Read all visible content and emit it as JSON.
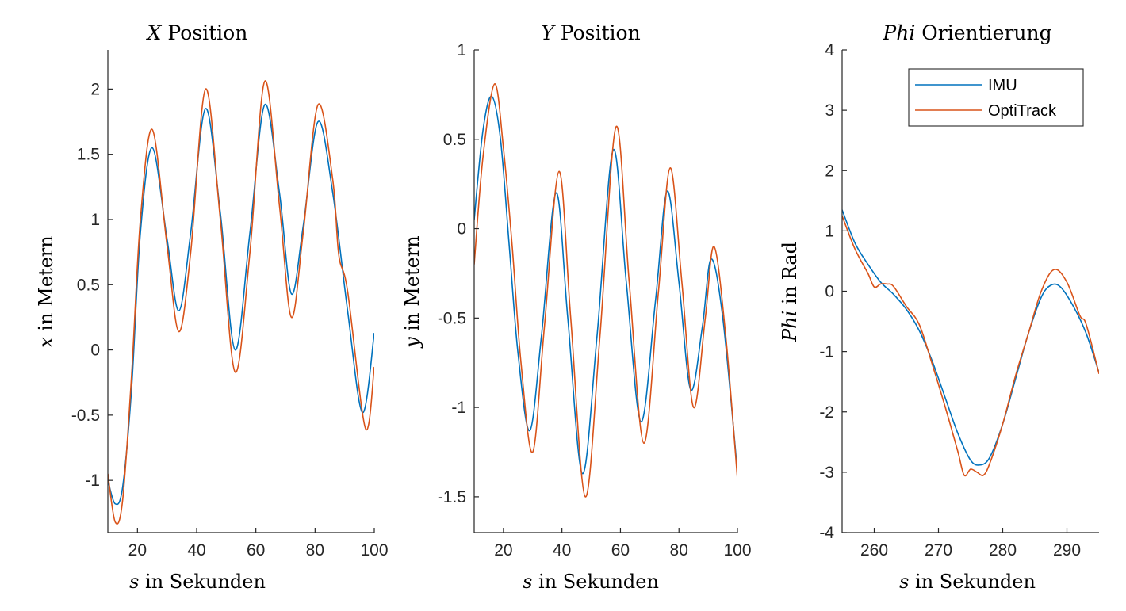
{
  "chart_data": [
    {
      "type": "line",
      "title": "X Position",
      "title_var": "X",
      "title_rest": " Position",
      "xlabel_var": "s",
      "xlabel_rest": " in Sekunden",
      "ylabel_var": "x",
      "ylabel_rest": " in Metern",
      "xlim": [
        10,
        100
      ],
      "ylim": [
        -1.4,
        2.3
      ],
      "xticks": [
        20,
        40,
        60,
        80,
        100
      ],
      "yticks": [
        -1,
        -0.5,
        0,
        0.5,
        1,
        1.5,
        2
      ],
      "legend": false,
      "series": [
        {
          "name": "IMU",
          "color": "#0072BD",
          "x": [
            10,
            12.5,
            15,
            18,
            21,
            25,
            30,
            34,
            38,
            43,
            48,
            53,
            58,
            63,
            68,
            72,
            76,
            81,
            86,
            91,
            96,
            100
          ],
          "y": [
            -1.0,
            -1.18,
            -1.05,
            -0.3,
            0.9,
            1.55,
            0.85,
            0.3,
            0.9,
            1.85,
            1.05,
            0.0,
            0.9,
            1.88,
            1.2,
            0.43,
            0.95,
            1.75,
            1.2,
            0.3,
            -0.48,
            0.13
          ]
        },
        {
          "name": "OptiTrack",
          "color": "#D95319",
          "x": [
            10,
            12.5,
            15,
            18,
            21,
            25,
            30,
            34,
            38,
            43,
            48,
            53,
            58,
            63,
            68,
            72,
            76,
            81,
            86,
            88,
            91,
            97,
            100
          ],
          "y": [
            -0.95,
            -1.32,
            -1.15,
            -0.2,
            1.0,
            1.69,
            0.8,
            0.14,
            0.75,
            2.0,
            1.0,
            -0.17,
            0.75,
            2.06,
            1.1,
            0.25,
            0.9,
            1.88,
            1.3,
            0.73,
            0.45,
            -0.6,
            -0.13
          ]
        }
      ]
    },
    {
      "type": "line",
      "title": "Y Position",
      "title_var": "Y",
      "title_rest": " Position",
      "xlabel_var": "s",
      "xlabel_rest": " in Sekunden",
      "ylabel_var": "y",
      "ylabel_rest": " in Metern",
      "xlim": [
        10,
        100
      ],
      "ylim": [
        -1.7,
        1.0
      ],
      "xticks": [
        20,
        40,
        60,
        80,
        100
      ],
      "yticks": [
        -1.5,
        -1,
        -0.5,
        0,
        0.5,
        1
      ],
      "legend": false,
      "series": [
        {
          "name": "IMU",
          "color": "#0072BD",
          "x": [
            10,
            13,
            16,
            19,
            22,
            25,
            29,
            33,
            38,
            42,
            47,
            52,
            57.5,
            62,
            67,
            72,
            76,
            80,
            84,
            88,
            91,
            95,
            100
          ],
          "y": [
            0.05,
            0.55,
            0.74,
            0.5,
            -0.1,
            -0.7,
            -1.13,
            -0.6,
            0.2,
            -0.5,
            -1.37,
            -0.6,
            0.44,
            -0.3,
            -1.08,
            -0.4,
            0.21,
            -0.3,
            -0.9,
            -0.55,
            -0.17,
            -0.5,
            -1.36
          ]
        },
        {
          "name": "OptiTrack",
          "color": "#D95319",
          "x": [
            10,
            13,
            17,
            20,
            23,
            26,
            30,
            34,
            39,
            43,
            48,
            53,
            58.5,
            63,
            68,
            73,
            77,
            81,
            85,
            89,
            92,
            96,
            100
          ],
          "y": [
            -0.2,
            0.4,
            0.81,
            0.45,
            -0.1,
            -0.75,
            -1.25,
            -0.55,
            0.32,
            -0.5,
            -1.5,
            -0.6,
            0.57,
            -0.3,
            -1.2,
            -0.35,
            0.34,
            -0.3,
            -1.0,
            -0.5,
            -0.1,
            -0.6,
            -1.4
          ]
        }
      ]
    },
    {
      "type": "line",
      "title": "Phi Orientierung",
      "title_var": "Phi",
      "title_rest": " Orientierung",
      "xlabel_var": "s",
      "xlabel_rest": " in Sekunden",
      "ylabel_var": "Phi",
      "ylabel_rest": " in Rad",
      "xlim": [
        255,
        295
      ],
      "ylim": [
        -4,
        4
      ],
      "xticks": [
        260,
        270,
        280,
        290
      ],
      "yticks": [
        -4,
        -3,
        -2,
        -1,
        0,
        1,
        2,
        3,
        4
      ],
      "legend": true,
      "legend_position": "top-right",
      "series": [
        {
          "name": "IMU",
          "color": "#0072BD",
          "x": [
            255,
            257,
            259,
            261,
            263,
            265,
            267,
            269,
            271,
            273,
            275,
            276.5,
            278,
            280,
            282,
            284,
            286,
            287.5,
            289,
            291,
            293,
            295
          ],
          "y": [
            1.35,
            0.8,
            0.45,
            0.15,
            -0.05,
            -0.3,
            -0.65,
            -1.15,
            -1.75,
            -2.35,
            -2.8,
            -2.88,
            -2.75,
            -2.2,
            -1.45,
            -0.7,
            -0.1,
            0.1,
            0.07,
            -0.25,
            -0.7,
            -1.35
          ]
        },
        {
          "name": "OptiTrack",
          "color": "#D95319",
          "x": [
            255,
            257,
            259,
            260,
            261,
            262,
            263,
            265,
            267,
            269,
            271,
            273,
            274,
            275,
            276,
            277,
            278,
            280,
            282,
            284,
            286,
            288,
            290,
            292,
            293,
            295
          ],
          "y": [
            1.25,
            0.7,
            0.3,
            0.07,
            0.12,
            0.12,
            0.08,
            -0.25,
            -0.55,
            -1.2,
            -1.9,
            -2.65,
            -3.05,
            -2.95,
            -3.0,
            -3.05,
            -2.85,
            -2.2,
            -1.4,
            -0.7,
            0.0,
            0.36,
            0.15,
            -0.4,
            -0.55,
            -1.37
          ]
        }
      ]
    }
  ]
}
